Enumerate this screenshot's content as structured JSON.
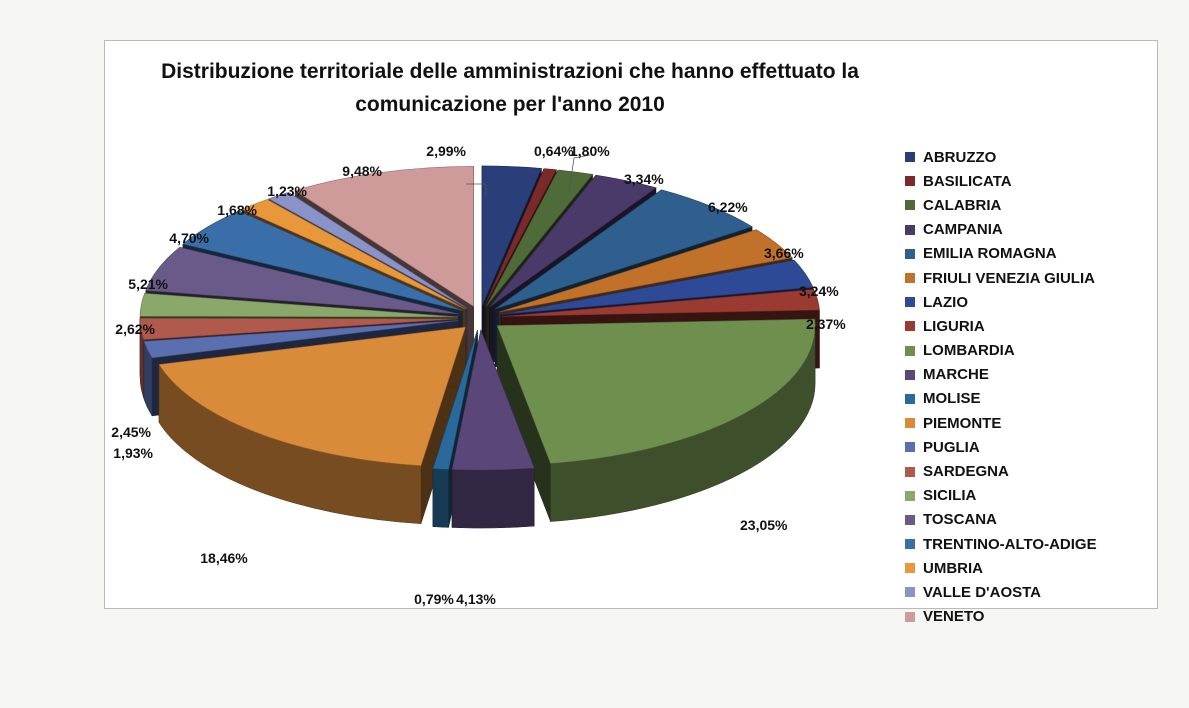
{
  "chart_data": {
    "type": "pie",
    "title": "Distribuzione territoriale delle amministrazioni che hanno effettuato la comunicazione per l'anno 2010",
    "title_lines": [
      "Distribuzione territoriale delle amministrazioni che hanno effettuato la",
      "comunicazione  per l'anno 2010"
    ],
    "legend_position": "right",
    "slices": [
      {
        "name": "ABRUZZO",
        "value": 2.99,
        "label": "2,99%",
        "color": "#2a3f7a"
      },
      {
        "name": "BASILICATA",
        "value": 0.64,
        "label": "0,64%",
        "color": "#7a2a2a"
      },
      {
        "name": "CALABRIA",
        "value": 1.8,
        "label": "1,80%",
        "color": "#4f6b3a"
      },
      {
        "name": "CAMPANIA",
        "value": 3.34,
        "label": "3,34%",
        "color": "#4a3a6a"
      },
      {
        "name": "EMILIA ROMAGNA",
        "value": 6.22,
        "label": "6,22%",
        "color": "#2e5f8f"
      },
      {
        "name": "FRIULI VENEZIA GIULIA",
        "value": 3.66,
        "label": "3,66%",
        "color": "#c2712a"
      },
      {
        "name": "LAZIO",
        "value": 3.24,
        "label": "3,24%",
        "color": "#2e4a96"
      },
      {
        "name": "LIGURIA",
        "value": 2.37,
        "label": "2,37%",
        "color": "#9a3a30"
      },
      {
        "name": "LOMBARDIA",
        "value": 23.05,
        "label": "23,05%",
        "color": "#6f8f4f"
      },
      {
        "name": "MARCHE",
        "value": 4.13,
        "label": "4,13%",
        "color": "#5a4678"
      },
      {
        "name": "MOLISE",
        "value": 0.79,
        "label": "0,79%",
        "color": "#2a6a9a"
      },
      {
        "name": "PIEMONTE",
        "value": 18.46,
        "label": "18,46%",
        "color": "#d98b3a"
      },
      {
        "name": "PUGLIA",
        "value": 1.93,
        "label": "1,93%",
        "color": "#5a6fb0"
      },
      {
        "name": "SARDEGNA",
        "value": 2.45,
        "label": "2,45%",
        "color": "#b05a4e"
      },
      {
        "name": "SICILIA",
        "value": 2.62,
        "label": "2,62%",
        "color": "#8aa86a"
      },
      {
        "name": "TOSCANA",
        "value": 5.21,
        "label": "5,21%",
        "color": "#6a5a8a"
      },
      {
        "name": "TRENTINO-ALTO-ADIGE",
        "value": 4.7,
        "label": "4,70%",
        "color": "#3a6ea8"
      },
      {
        "name": "UMBRIA",
        "value": 1.68,
        "label": "1,68%",
        "color": "#e8973a"
      },
      {
        "name": "VALLE D'AOSTA",
        "value": 1.23,
        "label": "1,23%",
        "color": "#8a93c8"
      },
      {
        "name": "VENETO",
        "value": 9.48,
        "label": "9,48%",
        "color": "#cf9a9a"
      }
    ]
  }
}
